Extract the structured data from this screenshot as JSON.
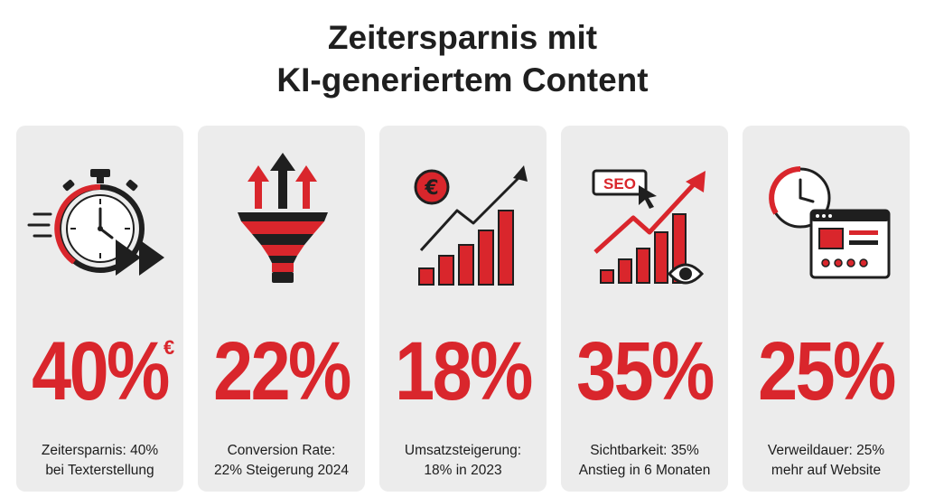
{
  "title": {
    "line1": "Zeitersparnis mit",
    "line2": "KI-generiertem Content"
  },
  "colors": {
    "accent": "#d9262c",
    "dark": "#1f1f1f",
    "card": "#ececec"
  },
  "cards": [
    {
      "icon": "stopwatch-fast-forward-icon",
      "value": "40%",
      "superscript": "€",
      "caption_line1": "Zeitersparnis: 40%",
      "caption_line2": "bei Texterstellung"
    },
    {
      "icon": "funnel-arrows-icon",
      "value": "22%",
      "caption_line1": "Conversion Rate:",
      "caption_line2": "22% Steigerung 2024"
    },
    {
      "icon": "euro-growth-chart-icon",
      "value": "18%",
      "caption_line1": "Umsatzsteigerung:",
      "caption_line2": "18% in 2023"
    },
    {
      "icon": "seo-visibility-chart-icon",
      "value": "35%",
      "icon_text": "SEO",
      "caption_line1": "Sichtbarkeit: 35%",
      "caption_line2": "Anstieg in 6 Monaten"
    },
    {
      "icon": "clock-browser-window-icon",
      "value": "25%",
      "caption_line1": "Verweildauer: 25%",
      "caption_line2": "mehr auf Website"
    }
  ]
}
